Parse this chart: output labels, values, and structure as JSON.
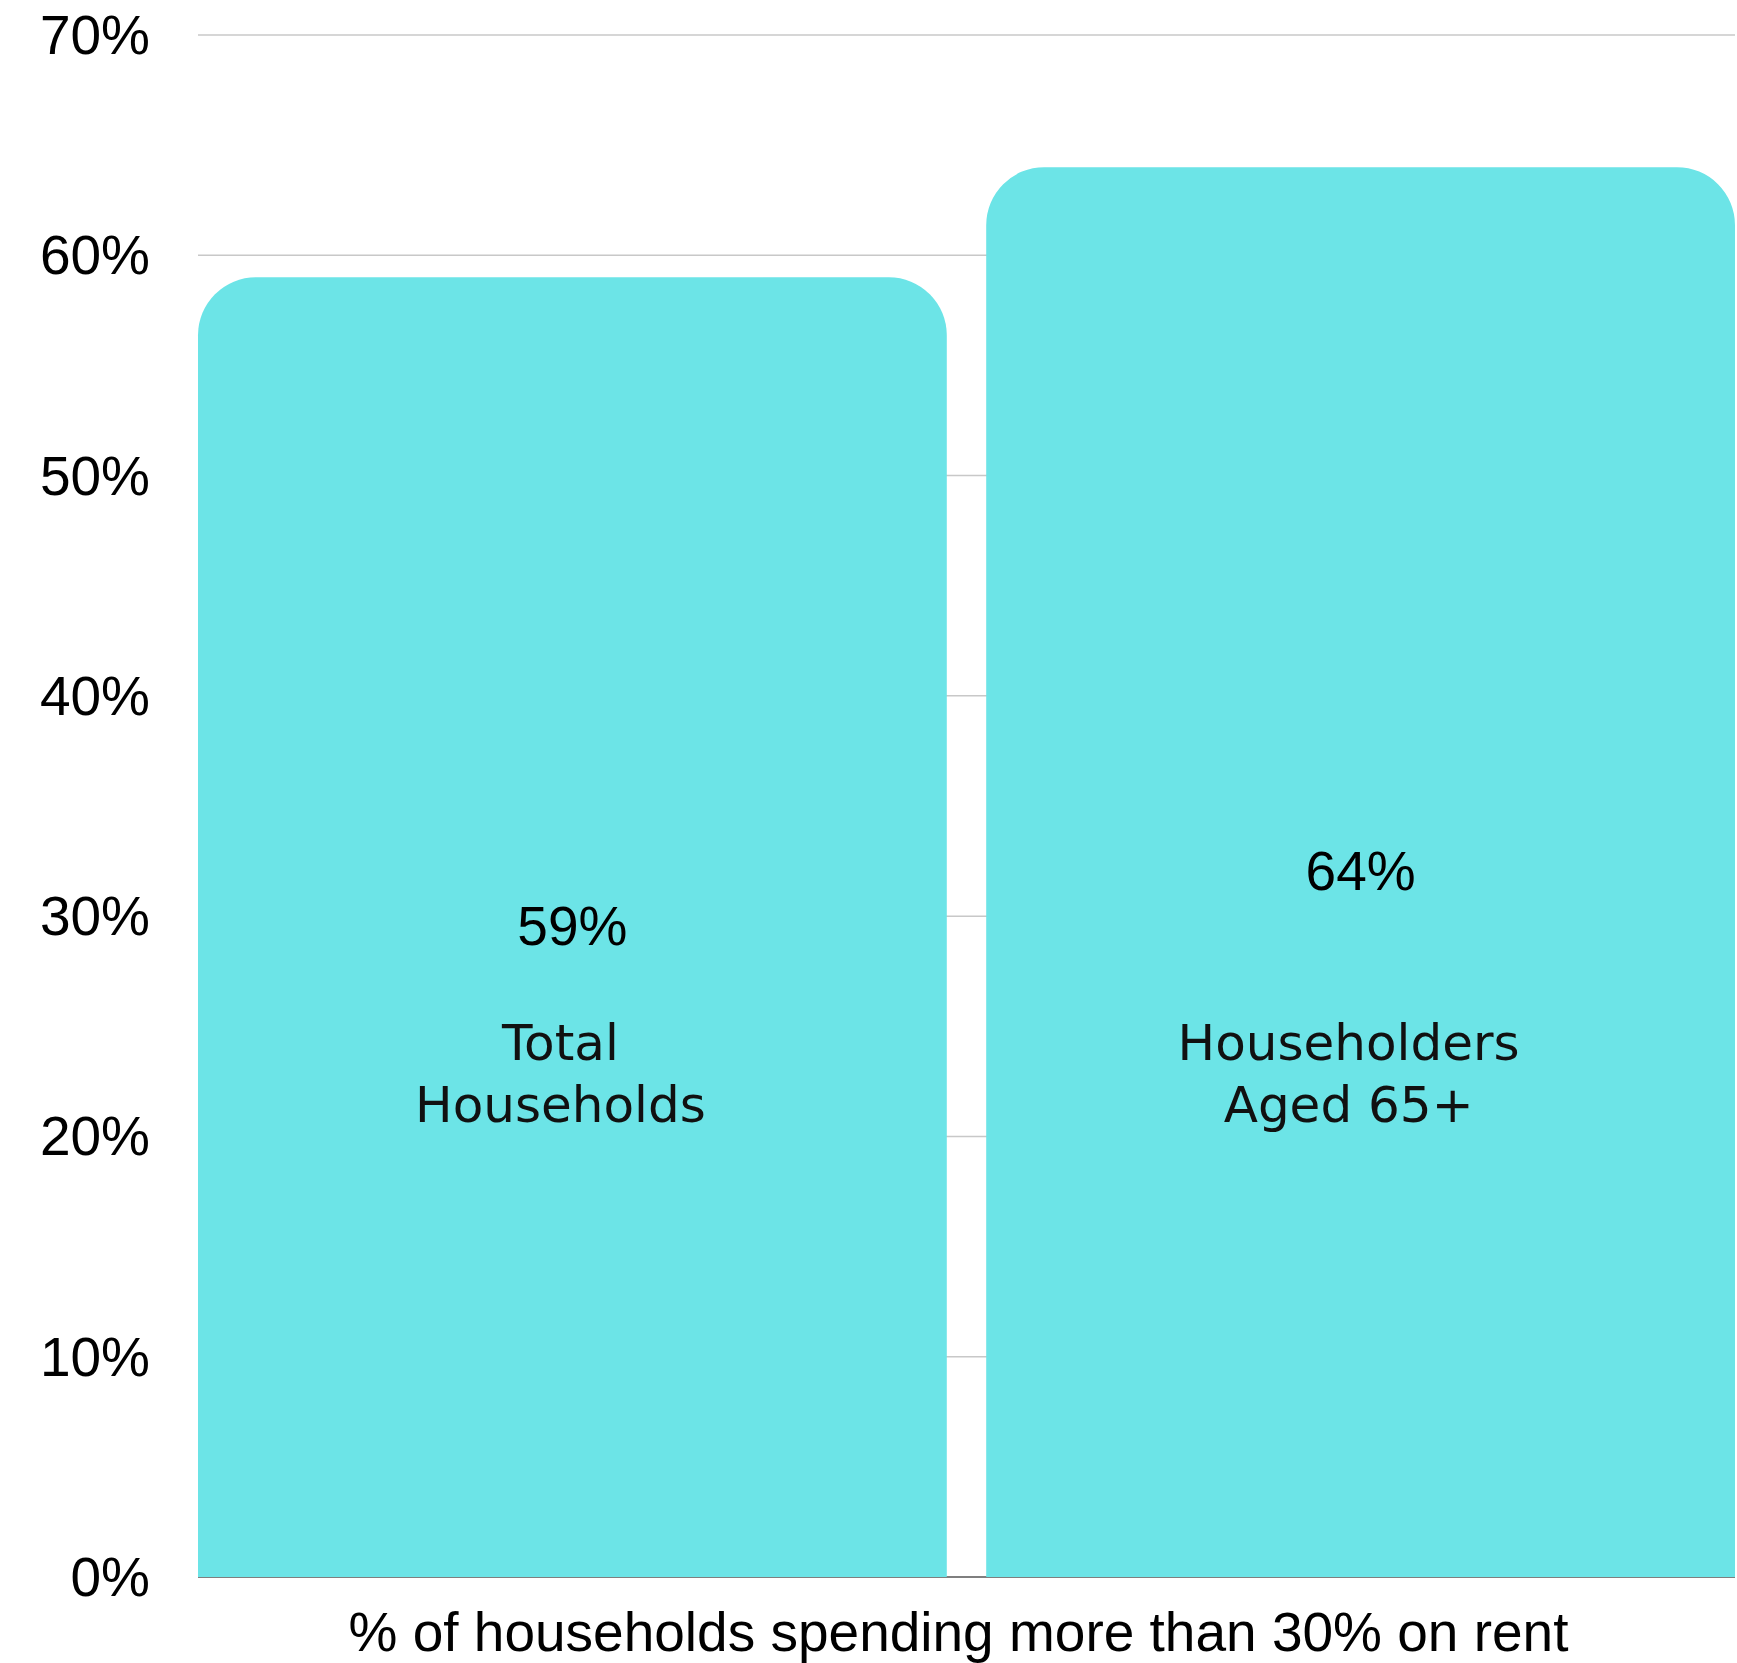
{
  "chart_data": {
    "type": "bar",
    "xlabel": "% of households spending more than 30% on rent",
    "categories": [
      "Total Households",
      "Householders Aged 65+"
    ],
    "values": [
      59,
      64
    ],
    "value_labels": [
      "59%",
      "64%"
    ],
    "color": "#6ce4e7",
    "ylim": [
      0,
      70
    ],
    "yticks": [
      {
        "value": 0,
        "label": "0%"
      },
      {
        "value": 10,
        "label": "10%"
      },
      {
        "value": 20,
        "label": "20%"
      },
      {
        "value": 30,
        "label": "30%"
      },
      {
        "value": 40,
        "label": "40%"
      },
      {
        "value": 50,
        "label": "50%"
      },
      {
        "value": 60,
        "label": "60%"
      },
      {
        "value": 70,
        "label": "70%"
      }
    ],
    "grid": true
  }
}
